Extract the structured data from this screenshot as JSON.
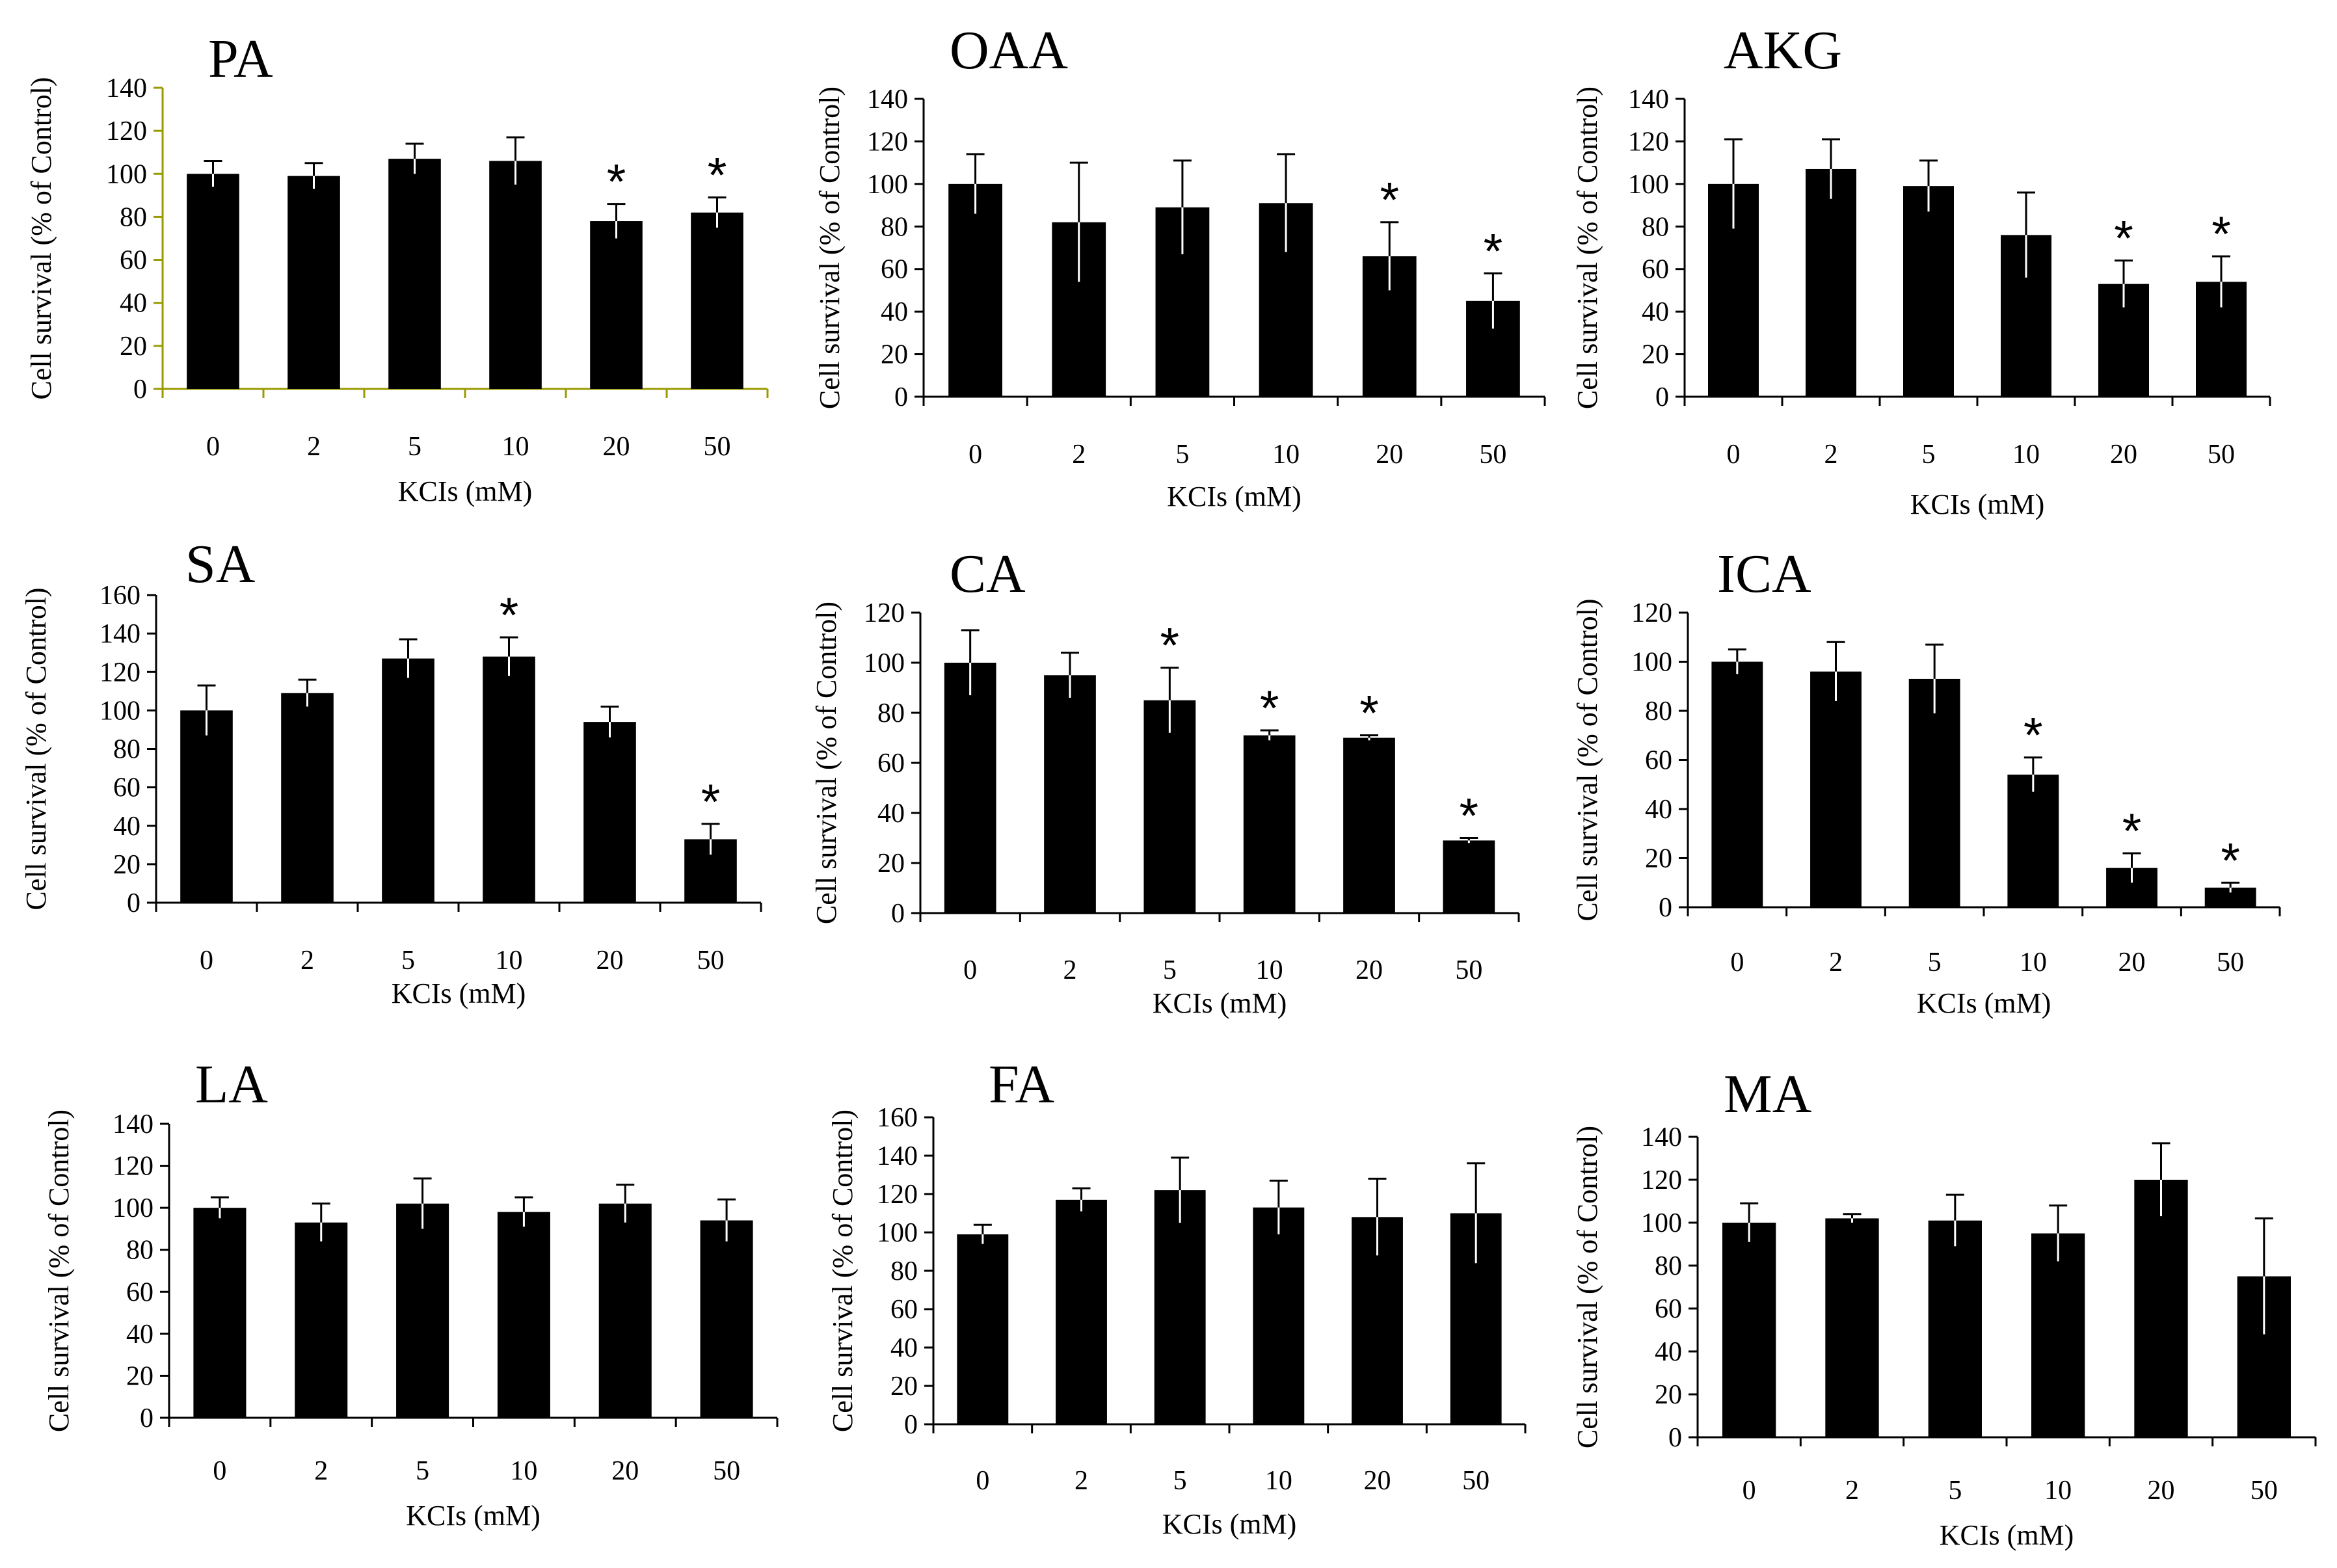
{
  "colors": {
    "bar": "#000000",
    "axis": "#000000",
    "background": "#ffffff"
  },
  "chart_data": [
    {
      "type": "bar",
      "title": "PA",
      "categories": [
        "0",
        "2",
        "5",
        "10",
        "20",
        "50"
      ],
      "values": [
        100,
        99,
        107,
        106,
        78,
        82
      ],
      "errors": [
        6,
        6,
        7,
        11,
        8,
        7
      ],
      "significant": [
        false,
        false,
        false,
        false,
        true,
        true
      ],
      "yticks": [
        0,
        20,
        40,
        60,
        80,
        100,
        120,
        140
      ],
      "ylim": [
        0,
        140
      ],
      "xlabel": "KCIs (mM)",
      "ylabel": "Cell survival (% of Control)",
      "marker": "*",
      "axis_color": "#9a9a00"
    },
    {
      "type": "bar",
      "title": "OAA",
      "categories": [
        "0",
        "2",
        "5",
        "10",
        "20",
        "50"
      ],
      "values": [
        100,
        82,
        89,
        91,
        66,
        45
      ],
      "errors": [
        14,
        28,
        22,
        23,
        16,
        13
      ],
      "significant": [
        false,
        false,
        false,
        false,
        true,
        true
      ],
      "yticks": [
        0,
        20,
        40,
        60,
        80,
        100,
        120,
        140
      ],
      "ylim": [
        0,
        140
      ],
      "xlabel": "KCIs (mM)",
      "ylabel": "Cell survival (% of Control)",
      "marker": "*",
      "axis_color": "#000000"
    },
    {
      "type": "bar",
      "title": "AKG",
      "categories": [
        "0",
        "2",
        "5",
        "10",
        "20",
        "50"
      ],
      "values": [
        100,
        107,
        99,
        76,
        53,
        54
      ],
      "errors": [
        21,
        14,
        12,
        20,
        11,
        12
      ],
      "significant": [
        false,
        false,
        false,
        false,
        true,
        true
      ],
      "yticks": [
        0,
        20,
        40,
        60,
        80,
        100,
        120,
        140
      ],
      "ylim": [
        0,
        140
      ],
      "xlabel": "KCIs (mM)",
      "ylabel": "Cell survival (% of Control)",
      "marker": "*",
      "axis_color": "#000000"
    },
    {
      "type": "bar",
      "title": "SA",
      "categories": [
        "0",
        "2",
        "5",
        "10",
        "20",
        "50"
      ],
      "values": [
        100,
        109,
        127,
        128,
        94,
        33
      ],
      "errors": [
        13,
        7,
        10,
        10,
        8,
        8
      ],
      "significant": [
        false,
        false,
        false,
        true,
        false,
        true
      ],
      "yticks": [
        0,
        20,
        40,
        60,
        80,
        100,
        120,
        140,
        160
      ],
      "ylim": [
        0,
        160
      ],
      "xlabel": "KCIs (mM)",
      "ylabel": "Cell survival (% of Control)",
      "marker": "*",
      "axis_color": "#000000"
    },
    {
      "type": "bar",
      "title": "CA",
      "categories": [
        "0",
        "2",
        "5",
        "10",
        "20",
        "50"
      ],
      "values": [
        100,
        95,
        85,
        71,
        70,
        29
      ],
      "errors": [
        13,
        9,
        13,
        2,
        1,
        1
      ],
      "significant": [
        false,
        false,
        true,
        true,
        true,
        true
      ],
      "yticks": [
        0,
        20,
        40,
        60,
        80,
        100,
        120
      ],
      "ylim": [
        0,
        120
      ],
      "xlabel": "KCIs (mM)",
      "ylabel": "Cell survival (% of Control)",
      "marker": "*",
      "axis_color": "#000000"
    },
    {
      "type": "bar",
      "title": "ICA",
      "categories": [
        "0",
        "2",
        "5",
        "10",
        "20",
        "50"
      ],
      "values": [
        100,
        96,
        93,
        54,
        16,
        8
      ],
      "errors": [
        5,
        12,
        14,
        7,
        6,
        2
      ],
      "significant": [
        false,
        false,
        false,
        true,
        true,
        true
      ],
      "yticks": [
        0,
        20,
        40,
        60,
        80,
        100,
        120
      ],
      "ylim": [
        0,
        120
      ],
      "xlabel": "KCIs (mM)",
      "ylabel": "Cell survival (% of Control)",
      "marker": "*",
      "axis_color": "#000000"
    },
    {
      "type": "bar",
      "title": "LA",
      "categories": [
        "0",
        "2",
        "5",
        "10",
        "20",
        "50"
      ],
      "values": [
        100,
        93,
        102,
        98,
        102,
        94
      ],
      "errors": [
        5,
        9,
        12,
        7,
        9,
        10
      ],
      "significant": [
        false,
        false,
        false,
        false,
        false,
        false
      ],
      "yticks": [
        0,
        20,
        40,
        60,
        80,
        100,
        120,
        140
      ],
      "ylim": [
        0,
        140
      ],
      "xlabel": "KCIs (mM)",
      "ylabel": "Cell survival (% of Control)",
      "marker": "*",
      "axis_color": "#000000"
    },
    {
      "type": "bar",
      "title": "FA",
      "categories": [
        "0",
        "2",
        "5",
        "10",
        "20",
        "50"
      ],
      "values": [
        99,
        117,
        122,
        113,
        108,
        110
      ],
      "errors": [
        5,
        6,
        17,
        14,
        20,
        26
      ],
      "significant": [
        false,
        false,
        false,
        false,
        false,
        false
      ],
      "yticks": [
        0,
        20,
        40,
        60,
        80,
        100,
        120,
        140,
        160
      ],
      "ylim": [
        0,
        160
      ],
      "xlabel": "KCIs (mM)",
      "ylabel": "Cell survival (% of Control)",
      "marker": "*",
      "axis_color": "#000000"
    },
    {
      "type": "bar",
      "title": "MA",
      "categories": [
        "0",
        "2",
        "5",
        "10",
        "20",
        "50"
      ],
      "values": [
        100,
        102,
        101,
        95,
        120,
        75
      ],
      "errors": [
        9,
        2,
        12,
        13,
        17,
        27
      ],
      "significant": [
        false,
        false,
        false,
        false,
        false,
        false
      ],
      "yticks": [
        0,
        20,
        40,
        60,
        80,
        100,
        120,
        140
      ],
      "ylim": [
        0,
        140
      ],
      "xlabel": "KCIs (mM)",
      "ylabel": "Cell survival (% of Control)",
      "marker": "*",
      "axis_color": "#000000"
    }
  ]
}
